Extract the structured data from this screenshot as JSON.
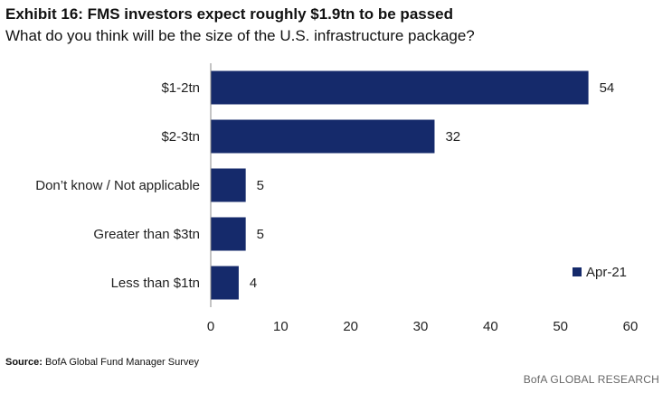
{
  "header": {
    "title": "Exhibit 16: FMS investors expect roughly $1.9tn to be passed",
    "subtitle": "What do you think will be the size of the U.S. infrastructure package?"
  },
  "footer": {
    "source_label": "Source:",
    "source_text": "BofA Global Fund Manager Survey",
    "brand": "BofA GLOBAL RESEARCH"
  },
  "chart_data": {
    "type": "bar",
    "orientation": "horizontal",
    "title": "Exhibit 16: FMS investors expect roughly $1.9tn to be passed",
    "subtitle": "What do you think will be the size of the U.S. infrastructure package?",
    "categories": [
      "$1-2tn",
      "$2-3tn",
      "Don’t know / Not applicable",
      "Greater than $3tn",
      "Less than $1tn"
    ],
    "series": [
      {
        "name": "Apr-21",
        "values": [
          54,
          32,
          5,
          5,
          4
        ],
        "color": "#152a6b"
      }
    ],
    "xlim": [
      0,
      60
    ],
    "xticks": [
      0,
      10,
      20,
      30,
      40,
      50,
      60
    ],
    "xlabel": "",
    "ylabel": "",
    "grid": false,
    "legend_position": "bottom-right"
  }
}
